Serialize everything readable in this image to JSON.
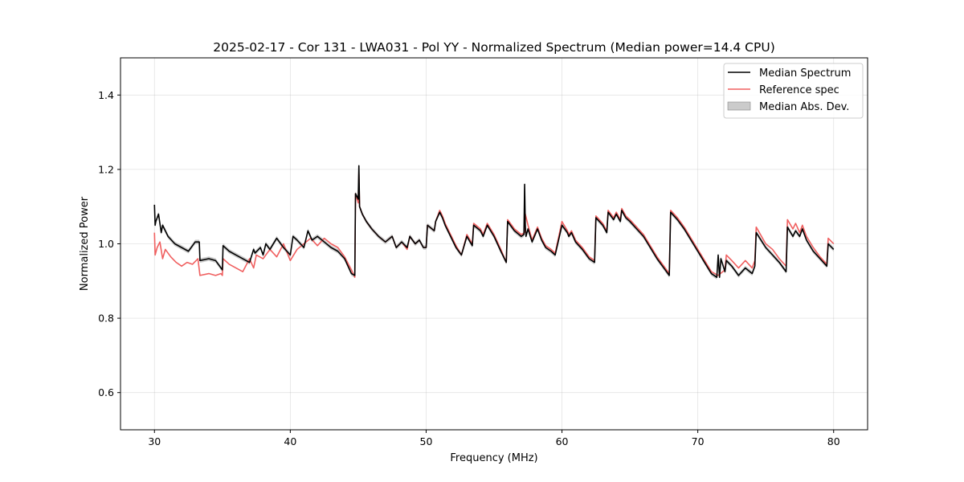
{
  "chart_data": {
    "type": "line",
    "title": "2025-02-17 - Cor 131 - LWA031 - Pol YY - Normalized Spectrum (Median power=14.4 CPU)",
    "xlabel": "Frequency (MHz)",
    "ylabel": "Normalized Power",
    "xlim": [
      27.5,
      82.5
    ],
    "ylim": [
      0.5,
      1.5
    ],
    "xticks": [
      30,
      40,
      50,
      60,
      70,
      80
    ],
    "yticks": [
      0.6,
      0.8,
      1.0,
      1.2,
      1.4
    ],
    "xtick_labels": [
      "30",
      "40",
      "50",
      "60",
      "70",
      "80"
    ],
    "ytick_labels": [
      "0.6",
      "0.8",
      "1.0",
      "1.2",
      "1.4"
    ],
    "grid": true,
    "legend_position": "top-right",
    "legend": [
      "Median Spectrum",
      "Reference spec",
      "Median Abs. Dev."
    ],
    "colors": {
      "median": "#000000",
      "reference": "#f06060",
      "mad": "#a0a0a0"
    },
    "series": [
      {
        "name": "Median Spectrum",
        "x": [
          30.0,
          30.05,
          30.1,
          30.3,
          30.5,
          30.6,
          31.0,
          31.5,
          32.0,
          32.5,
          33.0,
          33.3,
          33.35,
          34.0,
          34.5,
          35.0,
          35.05,
          35.5,
          36.0,
          36.5,
          37.0,
          37.3,
          37.4,
          37.8,
          38.0,
          38.2,
          38.5,
          39.0,
          39.5,
          40.0,
          40.2,
          40.5,
          41.0,
          41.3,
          41.6,
          42.0,
          42.5,
          43.0,
          43.5,
          44.0,
          44.5,
          44.75,
          44.8,
          45.0,
          45.05,
          45.1,
          45.3,
          45.6,
          46.0,
          46.5,
          47.0,
          47.5,
          47.8,
          48.2,
          48.6,
          48.8,
          49.2,
          49.5,
          49.8,
          50.0,
          50.1,
          50.6,
          50.7,
          51.0,
          51.2,
          51.4,
          51.8,
          52.2,
          52.6,
          53.0,
          53.4,
          53.5,
          54.0,
          54.2,
          54.5,
          55.0,
          55.5,
          55.9,
          56.0,
          56.5,
          57.0,
          57.2,
          57.25,
          57.3,
          57.35,
          57.5,
          57.8,
          58.2,
          58.5,
          58.8,
          59.2,
          59.5,
          60.0,
          60.4,
          60.5,
          60.7,
          61.0,
          61.5,
          62.0,
          62.4,
          62.5,
          63.0,
          63.3,
          63.4,
          63.8,
          64.0,
          64.3,
          64.4,
          64.7,
          65.0,
          65.5,
          66.0,
          66.5,
          67.0,
          67.5,
          67.9,
          68.0,
          68.5,
          69.0,
          69.5,
          70.0,
          70.5,
          71.0,
          71.4,
          71.5,
          71.6,
          71.7,
          72.0,
          72.1,
          72.5,
          73.0,
          73.5,
          74.0,
          74.2,
          74.3,
          75.0,
          75.5,
          76.0,
          76.5,
          76.6,
          77.0,
          77.2,
          77.5,
          77.7,
          78.0,
          78.5,
          79.0,
          79.5,
          79.6,
          80.0
        ],
        "values": [
          1.105,
          1.05,
          1.06,
          1.08,
          1.03,
          1.05,
          1.02,
          1.0,
          0.99,
          0.98,
          1.005,
          1.005,
          0.955,
          0.96,
          0.955,
          0.93,
          0.995,
          0.98,
          0.97,
          0.96,
          0.95,
          0.985,
          0.975,
          0.99,
          0.97,
          1.0,
          0.985,
          1.015,
          0.99,
          0.97,
          1.02,
          1.01,
          0.99,
          1.035,
          1.01,
          1.02,
          1.005,
          0.99,
          0.98,
          0.96,
          0.92,
          0.915,
          1.135,
          1.12,
          1.21,
          1.1,
          1.08,
          1.06,
          1.04,
          1.02,
          1.005,
          1.02,
          0.99,
          1.005,
          0.99,
          1.02,
          1.0,
          1.01,
          0.99,
          0.99,
          1.05,
          1.035,
          1.06,
          1.085,
          1.07,
          1.05,
          1.02,
          0.99,
          0.97,
          1.02,
          0.995,
          1.05,
          1.035,
          1.02,
          1.05,
          1.02,
          0.98,
          0.95,
          1.06,
          1.035,
          1.02,
          1.025,
          1.16,
          1.05,
          1.02,
          1.04,
          1.005,
          1.04,
          1.01,
          0.99,
          0.98,
          0.97,
          1.05,
          1.03,
          1.02,
          1.03,
          1.005,
          0.985,
          0.96,
          0.95,
          1.07,
          1.05,
          1.03,
          1.085,
          1.065,
          1.08,
          1.06,
          1.09,
          1.07,
          1.06,
          1.04,
          1.02,
          0.99,
          0.96,
          0.935,
          0.915,
          1.085,
          1.065,
          1.04,
          1.01,
          0.98,
          0.95,
          0.92,
          0.91,
          0.97,
          0.91,
          0.96,
          0.925,
          0.955,
          0.94,
          0.915,
          0.935,
          0.92,
          0.94,
          1.03,
          0.99,
          0.97,
          0.95,
          0.925,
          1.045,
          1.02,
          1.035,
          1.02,
          1.04,
          1.01,
          0.98,
          0.96,
          0.94,
          1.0,
          0.985
        ]
      },
      {
        "name": "Reference spec",
        "x": [
          30.0,
          30.05,
          30.2,
          30.4,
          30.6,
          30.8,
          31.2,
          31.6,
          32.0,
          32.4,
          32.8,
          33.2,
          33.35,
          34.0,
          34.5,
          34.9,
          35.0,
          35.05,
          35.5,
          36.0,
          36.5,
          37.0,
          37.3,
          37.5,
          38.0,
          38.5,
          39.0,
          39.5,
          40.0,
          40.5,
          41.0,
          41.5,
          42.0,
          42.5,
          43.0,
          43.5,
          44.0,
          44.5,
          44.75,
          44.8,
          45.0,
          45.05,
          45.1,
          45.3,
          45.6,
          46.0,
          46.5,
          47.0,
          47.5,
          47.8,
          48.2,
          48.6,
          48.8,
          49.2,
          49.5,
          49.8,
          50.0,
          50.1,
          50.6,
          50.7,
          51.0,
          51.2,
          51.4,
          51.8,
          52.2,
          52.6,
          53.0,
          53.4,
          53.5,
          54.0,
          54.2,
          54.5,
          55.0,
          55.5,
          55.9,
          56.0,
          56.5,
          57.0,
          57.25,
          57.3,
          57.5,
          57.8,
          58.2,
          58.5,
          58.8,
          59.2,
          59.5,
          60.0,
          60.4,
          60.5,
          60.7,
          61.0,
          61.5,
          62.0,
          62.4,
          62.5,
          63.0,
          63.3,
          63.4,
          63.8,
          64.0,
          64.3,
          64.4,
          64.7,
          65.0,
          65.5,
          66.0,
          66.5,
          67.0,
          67.5,
          67.9,
          68.0,
          68.5,
          69.0,
          69.5,
          70.0,
          70.5,
          71.0,
          71.5,
          72.0,
          72.1,
          72.5,
          73.0,
          73.5,
          74.0,
          74.2,
          74.3,
          75.0,
          75.5,
          76.0,
          76.5,
          76.6,
          77.0,
          77.2,
          77.5,
          77.7,
          78.0,
          78.5,
          79.0,
          79.5,
          79.6,
          80.0
        ],
        "values": [
          1.03,
          0.97,
          0.99,
          1.005,
          0.96,
          0.985,
          0.965,
          0.95,
          0.94,
          0.95,
          0.945,
          0.96,
          0.915,
          0.92,
          0.915,
          0.92,
          0.915,
          0.96,
          0.945,
          0.935,
          0.925,
          0.96,
          0.935,
          0.97,
          0.96,
          0.985,
          0.965,
          1.0,
          0.955,
          0.985,
          1.0,
          1.015,
          0.995,
          1.015,
          1.0,
          0.99,
          0.965,
          0.93,
          0.91,
          1.135,
          1.11,
          1.19,
          1.1,
          1.08,
          1.06,
          1.04,
          1.02,
          1.005,
          1.02,
          0.99,
          1.005,
          0.985,
          1.02,
          1.0,
          1.01,
          0.99,
          0.99,
          1.05,
          1.035,
          1.06,
          1.09,
          1.075,
          1.055,
          1.025,
          0.995,
          0.97,
          1.025,
          1.0,
          1.055,
          1.04,
          1.025,
          1.055,
          1.025,
          0.985,
          0.95,
          1.065,
          1.04,
          1.025,
          1.03,
          1.08,
          1.05,
          1.01,
          1.045,
          1.015,
          0.995,
          0.985,
          0.975,
          1.06,
          1.035,
          1.025,
          1.035,
          1.01,
          0.99,
          0.965,
          0.955,
          1.075,
          1.055,
          1.035,
          1.09,
          1.07,
          1.085,
          1.065,
          1.095,
          1.075,
          1.065,
          1.045,
          1.025,
          0.995,
          0.965,
          0.94,
          0.92,
          1.09,
          1.07,
          1.045,
          1.015,
          0.985,
          0.955,
          0.925,
          0.915,
          0.93,
          0.97,
          0.955,
          0.935,
          0.955,
          0.935,
          0.955,
          1.045,
          1.0,
          0.985,
          0.96,
          0.94,
          1.065,
          1.04,
          1.055,
          1.03,
          1.05,
          1.02,
          0.99,
          0.965,
          0.945,
          1.015,
          1.0
        ]
      },
      {
        "name": "Median Abs. Dev.",
        "band_halfwidth": 0.006
      }
    ]
  }
}
